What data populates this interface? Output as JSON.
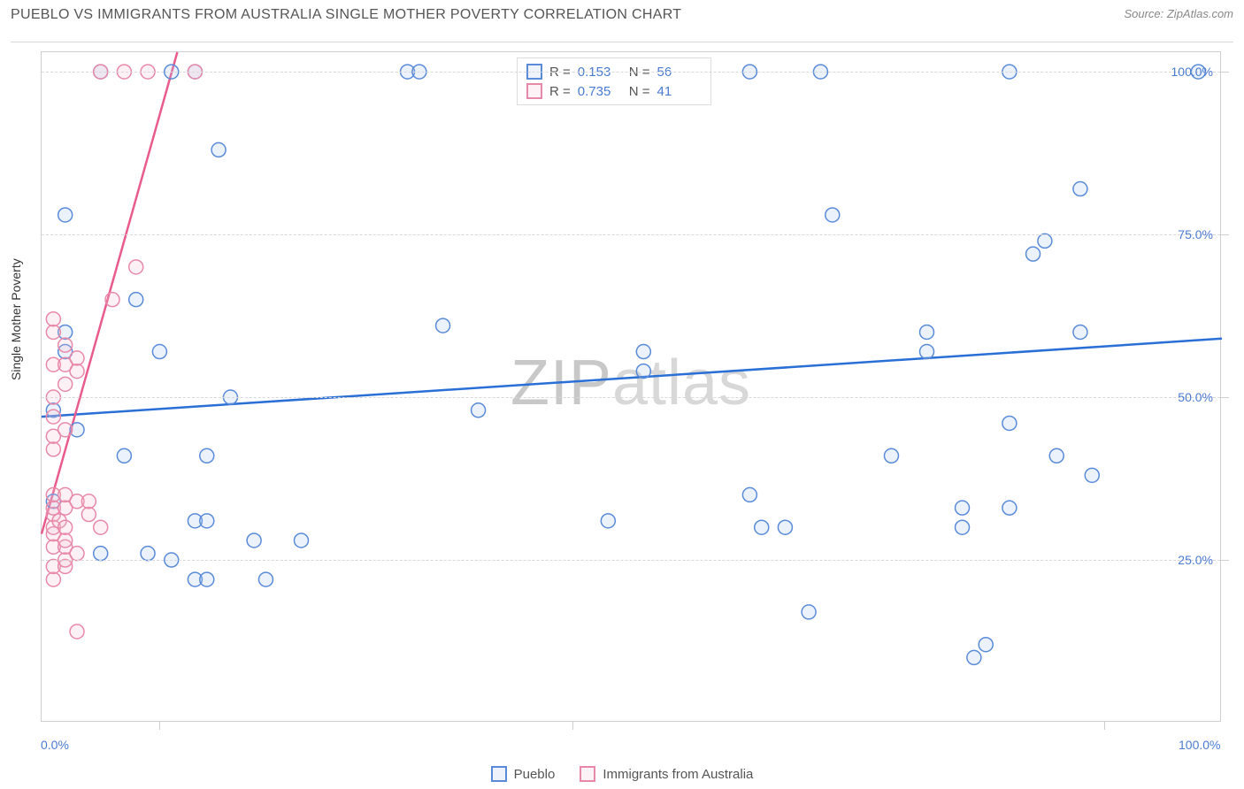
{
  "title": "PUEBLO VS IMMIGRANTS FROM AUSTRALIA SINGLE MOTHER POVERTY CORRELATION CHART",
  "source_label": "Source: ZipAtlas.com",
  "y_axis_label": "Single Mother Poverty",
  "watermark_a": "ZIP",
  "watermark_b": "atlas",
  "chart": {
    "type": "scatter",
    "xlim": [
      0,
      100
    ],
    "ylim": [
      0,
      103
    ],
    "y_ticks": [
      25,
      50,
      75,
      100
    ],
    "y_tick_labels": [
      "25.0%",
      "50.0%",
      "75.0%",
      "100.0%"
    ],
    "x_ticks": [
      10,
      45,
      90
    ],
    "x_corner_left": "0.0%",
    "x_corner_right": "100.0%",
    "background_color": "#ffffff",
    "grid_color": "#d8d8d8",
    "axis_color": "#cfcfcf",
    "tick_label_color": "#4a7bd0",
    "marker_radius": 8,
    "marker_stroke_width": 1.5,
    "marker_fill_opacity": 0.22,
    "trend_line_width": 2.5,
    "series": [
      {
        "name": "Pueblo",
        "color_stroke": "#5a8bd8",
        "color_fill": "#a8c5ec",
        "trend_color": "#2a6fd6",
        "R": "0.153",
        "N": "56",
        "trend": {
          "x1": 0,
          "y1": 47,
          "x2": 100,
          "y2": 59
        },
        "points": [
          [
            1,
            34
          ],
          [
            1,
            48
          ],
          [
            2,
            57
          ],
          [
            2,
            60
          ],
          [
            2,
            78
          ],
          [
            3,
            45
          ],
          [
            5,
            26
          ],
          [
            5,
            100
          ],
          [
            7,
            41
          ],
          [
            8,
            65
          ],
          [
            9,
            26
          ],
          [
            10,
            57
          ],
          [
            11,
            100
          ],
          [
            11,
            25
          ],
          [
            13,
            22
          ],
          [
            13,
            31
          ],
          [
            13,
            100
          ],
          [
            14,
            31
          ],
          [
            14,
            22
          ],
          [
            14,
            41
          ],
          [
            15,
            88
          ],
          [
            16,
            50
          ],
          [
            18,
            28
          ],
          [
            19,
            22
          ],
          [
            22,
            28
          ],
          [
            31,
            100
          ],
          [
            32,
            100
          ],
          [
            34,
            61
          ],
          [
            37,
            48
          ],
          [
            48,
            31
          ],
          [
            51,
            57
          ],
          [
            51,
            54
          ],
          [
            60,
            100
          ],
          [
            60,
            35
          ],
          [
            61,
            30
          ],
          [
            63,
            30
          ],
          [
            65,
            17
          ],
          [
            66,
            100
          ],
          [
            67,
            78
          ],
          [
            72,
            41
          ],
          [
            75,
            57
          ],
          [
            75,
            60
          ],
          [
            78,
            30
          ],
          [
            78,
            33
          ],
          [
            79,
            10
          ],
          [
            80,
            12
          ],
          [
            82,
            33
          ],
          [
            82,
            46
          ],
          [
            82,
            100
          ],
          [
            84,
            72
          ],
          [
            85,
            74
          ],
          [
            86,
            41
          ],
          [
            88,
            60
          ],
          [
            88,
            82
          ],
          [
            89,
            38
          ],
          [
            98,
            100
          ]
        ]
      },
      {
        "name": "Immigrants from Australia",
        "color_stroke": "#e889a8",
        "color_fill": "#f4bdd0",
        "trend_color": "#e95b8c",
        "R": "0.735",
        "N": "41",
        "trend": {
          "x1": 0,
          "y1": 29,
          "x2": 11.5,
          "y2": 103
        },
        "points": [
          [
            1,
            22
          ],
          [
            1,
            24
          ],
          [
            1,
            27
          ],
          [
            1,
            29
          ],
          [
            1,
            30
          ],
          [
            1,
            32
          ],
          [
            1,
            33
          ],
          [
            1,
            35
          ],
          [
            1,
            42
          ],
          [
            1,
            44
          ],
          [
            1,
            47
          ],
          [
            1,
            50
          ],
          [
            1,
            55
          ],
          [
            1,
            60
          ],
          [
            1,
            62
          ],
          [
            1.5,
            31
          ],
          [
            2,
            24
          ],
          [
            2,
            25
          ],
          [
            2,
            27
          ],
          [
            2,
            28
          ],
          [
            2,
            30
          ],
          [
            2,
            33
          ],
          [
            2,
            35
          ],
          [
            2,
            45
          ],
          [
            2,
            52
          ],
          [
            2,
            55
          ],
          [
            2,
            58
          ],
          [
            3,
            14
          ],
          [
            3,
            26
          ],
          [
            3,
            34
          ],
          [
            3,
            54
          ],
          [
            3,
            56
          ],
          [
            4,
            32
          ],
          [
            4,
            34
          ],
          [
            5,
            30
          ],
          [
            5,
            100
          ],
          [
            6,
            65
          ],
          [
            7,
            100
          ],
          [
            8,
            70
          ],
          [
            9,
            100
          ],
          [
            13,
            100
          ]
        ]
      }
    ]
  },
  "legend_top": {
    "R_label": "R  =",
    "N_label": "N  ="
  },
  "legend_bottom": {
    "items": [
      "Pueblo",
      "Immigrants from Australia"
    ]
  }
}
